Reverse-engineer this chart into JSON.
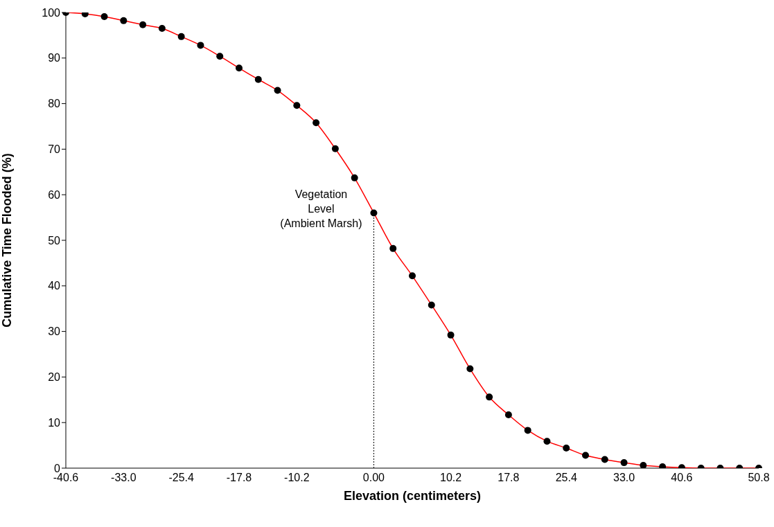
{
  "chart_data": {
    "type": "line",
    "xlabel": "Elevation (centimeters)",
    "ylabel": "Cumulative Time Flooded (%)",
    "categories": [
      "-40.6",
      null,
      null,
      "-33.0",
      null,
      null,
      "-25.4",
      null,
      null,
      "-17.8",
      null,
      null,
      "-10.2",
      null,
      null,
      null,
      "0.00",
      null,
      null,
      null,
      "10.2",
      null,
      null,
      "17.8",
      null,
      null,
      "25.4",
      null,
      null,
      "33.0",
      null,
      null,
      "40.6",
      null,
      null,
      null,
      "50.8"
    ],
    "series": [
      {
        "color": "#ff0000",
        "values": [
          100,
          99.7,
          99.1,
          98.2,
          97.3,
          96.5,
          94.7,
          92.8,
          90.4,
          87.8,
          85.3,
          82.9,
          79.6,
          75.8,
          70.1,
          63.7,
          56.0,
          48.2,
          42.2,
          35.8,
          29.2,
          21.8,
          15.6,
          11.7,
          8.3,
          5.9,
          4.4,
          2.8,
          1.9,
          1.2,
          0.6,
          0.3,
          0.1,
          0,
          0,
          0,
          0
        ]
      }
    ],
    "ylim": [
      0,
      100
    ],
    "yticks": [
      0,
      10,
      20,
      30,
      40,
      50,
      60,
      70,
      80,
      90,
      100
    ],
    "grid": false,
    "legend": false,
    "marker": "circle",
    "line_style": "solid",
    "ref_lines": [
      {
        "axis": "x",
        "value": "0.00",
        "label": "Vegetation\nLevel\n(Ambient Marsh)",
        "line_style": "dotted",
        "color": "#000000"
      }
    ]
  }
}
